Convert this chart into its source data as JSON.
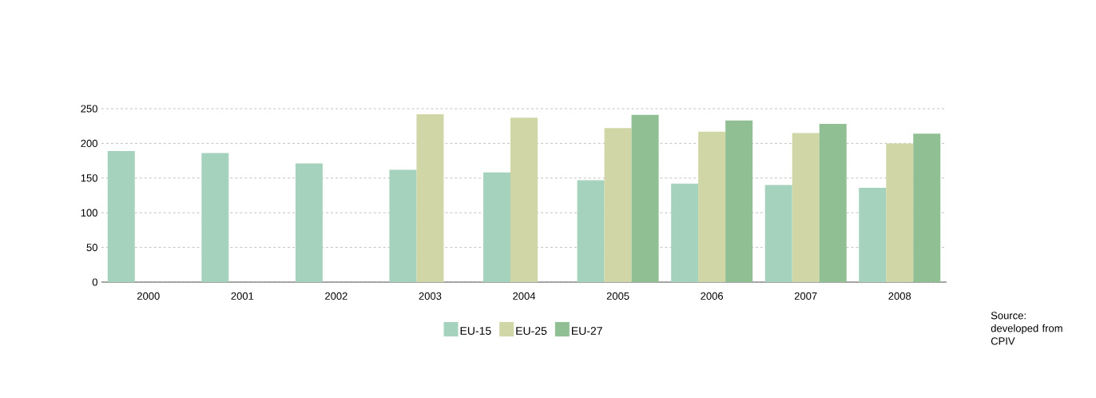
{
  "chart_data": {
    "type": "bar",
    "categories": [
      "2000",
      "2001",
      "2002",
      "2003",
      "2004",
      "2005",
      "2006",
      "2007",
      "2008"
    ],
    "series": [
      {
        "name": "EU-15",
        "color": "#a5d2bc",
        "values": [
          189,
          186,
          171,
          162,
          158,
          147,
          142,
          140,
          136
        ]
      },
      {
        "name": "EU-25",
        "color": "#d0d6a6",
        "values": [
          null,
          null,
          null,
          242,
          237,
          222,
          217,
          215,
          200
        ]
      },
      {
        "name": "EU-27",
        "color": "#8fbf92",
        "values": [
          null,
          null,
          null,
          null,
          null,
          241,
          233,
          228,
          214
        ]
      }
    ],
    "ylim": [
      0,
      250
    ],
    "yticks": [
      0,
      50,
      100,
      150,
      200,
      250
    ],
    "grid": "y",
    "legend": "bottom",
    "annotations": [
      "Source: developed from CPIV"
    ]
  }
}
